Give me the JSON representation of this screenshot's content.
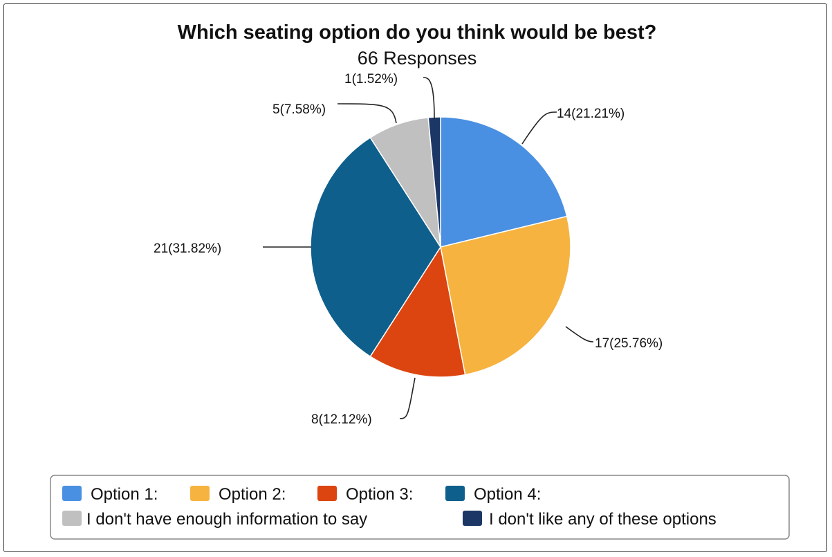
{
  "chart_data": {
    "type": "pie",
    "title": "Which seating option do you think would be best?",
    "subtitle": "66 Responses",
    "slices": [
      {
        "name": "Option 1:",
        "value": 14,
        "label": "14(21.21%)",
        "color": "#4a90e2"
      },
      {
        "name": "Option 2:",
        "value": 17,
        "label": "17(25.76%)",
        "color": "#f6b340"
      },
      {
        "name": "Option 3:",
        "value": 8,
        "label": "8(12.12%)",
        "color": "#dc4510"
      },
      {
        "name": "Option 4:",
        "value": 21,
        "label": "21(31.82%)",
        "color": "#0e5f8c"
      },
      {
        "name": "I don't have enough information to say",
        "value": 5,
        "label": "5(7.58%)",
        "color": "#c0c0c0"
      },
      {
        "name": "I don't like any of these options",
        "value": 1,
        "label": "1(1.52%)",
        "color": "#1c3766"
      }
    ],
    "legend_position": "bottom"
  }
}
